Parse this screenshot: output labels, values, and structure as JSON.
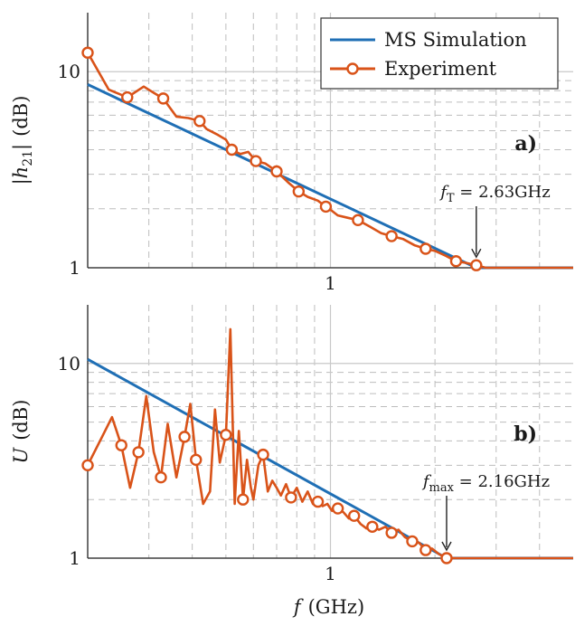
{
  "colors": {
    "simulation": "#1f6fb5",
    "experiment": "#d95319",
    "grid_major": "#c8c8c8",
    "grid_minor": "#bdbdbd",
    "axis": "#222222"
  },
  "legend": {
    "items": [
      {
        "label": "MS Simulation",
        "series": "simulation"
      },
      {
        "label": "Experiment",
        "series": "experiment",
        "marker": "circle"
      }
    ]
  },
  "xlabel": {
    "symbol": "f",
    "unit": "(GHz)"
  },
  "chart_data": [
    {
      "panel": "a)",
      "type": "line",
      "xscale": "log",
      "yscale": "log",
      "xlim": [
        0.2,
        5.0
      ],
      "ylim": [
        1,
        20
      ],
      "xticks": [
        {
          "value": 1,
          "label": "1"
        }
      ],
      "yticks": [
        {
          "value": 1,
          "label": "1"
        },
        {
          "value": 10,
          "label": "10"
        }
      ],
      "ylabel": {
        "symbol": "|h",
        "sub": "21",
        "suffix": "|",
        "unit": "(dB)"
      },
      "grid": true,
      "legend_position": "top-right",
      "annotation": {
        "sym": "f",
        "sub": "T",
        "text": " = 2.63GHz",
        "x": 2.63,
        "y": 1.03
      },
      "series": [
        {
          "name": "MS Simulation",
          "key": "simulation",
          "x": [
            0.2,
            2.63,
            5.0
          ],
          "y": [
            8.6,
            1.0,
            1.0
          ]
        },
        {
          "name": "Experiment",
          "key": "experiment",
          "x": [
            0.2,
            0.23,
            0.26,
            0.29,
            0.31,
            0.33,
            0.36,
            0.39,
            0.42,
            0.44,
            0.47,
            0.5,
            0.52,
            0.55,
            0.58,
            0.61,
            0.65,
            0.7,
            0.76,
            0.81,
            0.86,
            0.92,
            0.97,
            1.01,
            1.05,
            1.12,
            1.2,
            1.3,
            1.4,
            1.5,
            1.62,
            1.75,
            1.88,
            2.0,
            2.15,
            2.3,
            2.45,
            2.63,
            2.8,
            5.0
          ],
          "y": [
            12.5,
            8.1,
            7.4,
            8.4,
            7.8,
            7.3,
            5.9,
            5.8,
            5.6,
            5.1,
            4.8,
            4.5,
            4.0,
            3.8,
            3.9,
            3.5,
            3.4,
            3.1,
            2.7,
            2.45,
            2.3,
            2.2,
            2.05,
            1.95,
            1.85,
            1.8,
            1.75,
            1.62,
            1.5,
            1.45,
            1.4,
            1.3,
            1.25,
            1.22,
            1.15,
            1.08,
            1.06,
            1.03,
            1.0,
            1.0
          ],
          "markers_x": [
            0.2,
            0.26,
            0.33,
            0.42,
            0.52,
            0.61,
            0.7,
            0.81,
            0.97,
            1.2,
            1.5,
            1.88,
            2.3,
            2.63
          ]
        }
      ]
    },
    {
      "panel": "b)",
      "type": "line",
      "xscale": "log",
      "yscale": "log",
      "xlim": [
        0.2,
        5.0
      ],
      "ylim": [
        1,
        20
      ],
      "xticks": [
        {
          "value": 1,
          "label": "1"
        }
      ],
      "yticks": [
        {
          "value": 1,
          "label": "1"
        },
        {
          "value": 10,
          "label": "10"
        }
      ],
      "ylabel": {
        "symbol": "U",
        "sub": "",
        "suffix": "",
        "unit": "(dB)"
      },
      "grid": true,
      "annotation": {
        "sym": "f",
        "sub": "max",
        "text": " = 2.16GHz",
        "x": 2.16,
        "y": 1.0
      },
      "series": [
        {
          "name": "MS Simulation",
          "key": "simulation",
          "x": [
            0.2,
            2.16,
            5.0
          ],
          "y": [
            10.5,
            1.0,
            1.0
          ]
        },
        {
          "name": "Experiment",
          "key": "experiment",
          "x": [
            0.2,
            0.22,
            0.235,
            0.25,
            0.265,
            0.28,
            0.295,
            0.31,
            0.325,
            0.34,
            0.36,
            0.38,
            0.395,
            0.41,
            0.43,
            0.45,
            0.465,
            0.48,
            0.5,
            0.515,
            0.53,
            0.545,
            0.56,
            0.575,
            0.59,
            0.6,
            0.62,
            0.64,
            0.66,
            0.68,
            0.7,
            0.72,
            0.745,
            0.77,
            0.8,
            0.83,
            0.86,
            0.89,
            0.92,
            0.95,
            0.98,
            1.01,
            1.05,
            1.09,
            1.13,
            1.17,
            1.22,
            1.27,
            1.32,
            1.38,
            1.44,
            1.5,
            1.57,
            1.64,
            1.72,
            1.8,
            1.88,
            1.96,
            2.05,
            2.16,
            5.0
          ],
          "y": [
            3.0,
            4.2,
            5.3,
            3.8,
            2.3,
            3.5,
            6.8,
            3.5,
            2.6,
            4.9,
            2.6,
            4.2,
            6.2,
            3.2,
            1.9,
            2.2,
            5.8,
            3.1,
            4.3,
            15.0,
            1.9,
            4.5,
            2.0,
            3.2,
            2.3,
            2.0,
            3.0,
            3.4,
            2.2,
            2.5,
            2.3,
            2.1,
            2.4,
            2.05,
            2.3,
            1.95,
            2.2,
            1.9,
            1.95,
            1.85,
            1.9,
            1.75,
            1.8,
            1.72,
            1.6,
            1.65,
            1.5,
            1.42,
            1.45,
            1.4,
            1.45,
            1.35,
            1.4,
            1.28,
            1.22,
            1.2,
            1.1,
            1.12,
            1.05,
            1.0,
            1.0
          ],
          "markers_x": [
            0.2,
            0.25,
            0.28,
            0.325,
            0.38,
            0.41,
            0.5,
            0.56,
            0.64,
            0.77,
            0.92,
            1.05,
            1.17,
            1.32,
            1.5,
            1.72,
            1.88,
            2.16
          ]
        }
      ]
    }
  ]
}
